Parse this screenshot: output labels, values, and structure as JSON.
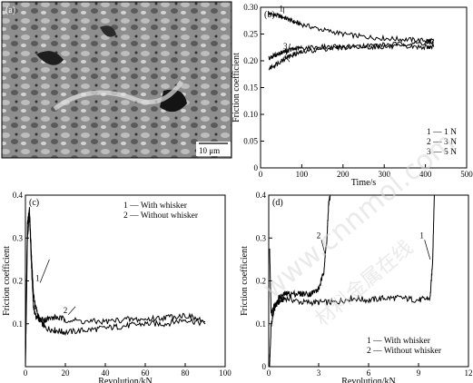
{
  "watermark": {
    "text": "www.cnnmol.com",
    "chinese": "材料金属在线"
  },
  "panel_a": {
    "label": "(a)",
    "scale_bar": "10 μm",
    "image": "SEM micrograph of worn surface"
  },
  "chart_data": [
    {
      "id": "b",
      "type": "line",
      "panel_label": "(b)",
      "xlabel": "Time/s",
      "ylabel": "Friction coefficient",
      "xlim": [
        0,
        500
      ],
      "ylim": [
        0.0,
        0.3
      ],
      "xticks": [
        "0",
        "100",
        "200",
        "300",
        "400",
        "500"
      ],
      "yticks": [
        "0",
        "0.05",
        "0.10",
        "0.15",
        "0.20",
        "0.25",
        "0.30"
      ],
      "legend": [
        "1 — 1 N",
        "2 — 3 N",
        "3 — 5 N"
      ],
      "legend_position": "bottom-right",
      "series": [
        {
          "name": "1 N",
          "label": "1",
          "x": [
            20,
            40,
            60,
            80,
            100,
            150,
            200,
            250,
            300,
            350,
            400,
            420
          ],
          "y": [
            0.288,
            0.285,
            0.28,
            0.273,
            0.268,
            0.258,
            0.25,
            0.245,
            0.242,
            0.24,
            0.238,
            0.237
          ]
        },
        {
          "name": "3 N",
          "label": "2",
          "x": [
            20,
            40,
            60,
            80,
            100,
            150,
            200,
            250,
            300,
            350,
            400,
            420
          ],
          "y": [
            0.185,
            0.195,
            0.205,
            0.212,
            0.216,
            0.222,
            0.225,
            0.228,
            0.23,
            0.232,
            0.233,
            0.234
          ]
        },
        {
          "name": "5 N",
          "label": "3",
          "x": [
            20,
            40,
            60,
            80,
            100,
            150,
            200,
            250,
            300,
            350,
            400,
            420
          ],
          "y": [
            0.205,
            0.212,
            0.218,
            0.222,
            0.224,
            0.226,
            0.226,
            0.226,
            0.226,
            0.226,
            0.226,
            0.226
          ]
        }
      ]
    },
    {
      "id": "c",
      "type": "line",
      "panel_label": "(c)",
      "xlabel": "Revolution/kN",
      "ylabel": "Friction coefficient",
      "xlim": [
        0,
        100
      ],
      "ylim": [
        0.0,
        0.4
      ],
      "xticks": [
        "0",
        "20",
        "40",
        "60",
        "80",
        "100"
      ],
      "yticks": [
        "0.1",
        "0.2",
        "0.3",
        "0.4"
      ],
      "legend": [
        "1 — With whisker",
        "2 — Without whisker"
      ],
      "legend_position": "top-right",
      "series": [
        {
          "name": "With whisker",
          "label": "1",
          "x": [
            0,
            1,
            2,
            3,
            4,
            5,
            7,
            10,
            15,
            20,
            30,
            40,
            50,
            60,
            70,
            80,
            90
          ],
          "y": [
            0.0,
            0.33,
            0.37,
            0.26,
            0.17,
            0.14,
            0.11,
            0.09,
            0.085,
            0.08,
            0.085,
            0.09,
            0.095,
            0.1,
            0.1,
            0.11,
            0.1
          ]
        },
        {
          "name": "Without whisker",
          "label": "2",
          "x": [
            0,
            1,
            2,
            3,
            4,
            5,
            7,
            10,
            15,
            20,
            30,
            40,
            50,
            60,
            70,
            80,
            90
          ],
          "y": [
            0.0,
            0.3,
            0.36,
            0.24,
            0.14,
            0.12,
            0.11,
            0.11,
            0.115,
            0.11,
            0.105,
            0.105,
            0.11,
            0.11,
            0.115,
            0.12,
            0.105
          ]
        }
      ]
    },
    {
      "id": "d",
      "type": "line",
      "panel_label": "(d)",
      "xlabel": "Revolution/kN",
      "ylabel": "Friction coefficient",
      "xlim": [
        0,
        12
      ],
      "ylim": [
        0.0,
        0.4
      ],
      "xticks": [
        "0",
        "3",
        "6",
        "9",
        "12"
      ],
      "yticks": [
        "0",
        "0.1",
        "0.2",
        "0.3",
        "0.4"
      ],
      "legend": [
        "1 — With whisker",
        "2 — Without whisker"
      ],
      "legend_position": "bottom-right",
      "series": [
        {
          "name": "With whisker",
          "label": "1",
          "x": [
            0.05,
            0.15,
            0.3,
            0.6,
            1.0,
            2.0,
            3.0,
            4.0,
            5.0,
            6.0,
            7.0,
            8.0,
            9.0,
            9.7,
            9.85,
            9.95
          ],
          "y": [
            0.28,
            0.12,
            0.14,
            0.15,
            0.16,
            0.15,
            0.15,
            0.15,
            0.16,
            0.155,
            0.16,
            0.16,
            0.155,
            0.16,
            0.25,
            0.4
          ]
        },
        {
          "name": "Without whisker",
          "label": "2",
          "x": [
            0.05,
            0.15,
            0.3,
            0.6,
            1.0,
            1.5,
            2.0,
            2.5,
            3.0,
            3.3,
            3.5,
            3.6,
            3.7
          ],
          "y": [
            0.0,
            0.1,
            0.13,
            0.16,
            0.17,
            0.17,
            0.17,
            0.17,
            0.18,
            0.22,
            0.3,
            0.38,
            0.4
          ]
        }
      ]
    }
  ]
}
